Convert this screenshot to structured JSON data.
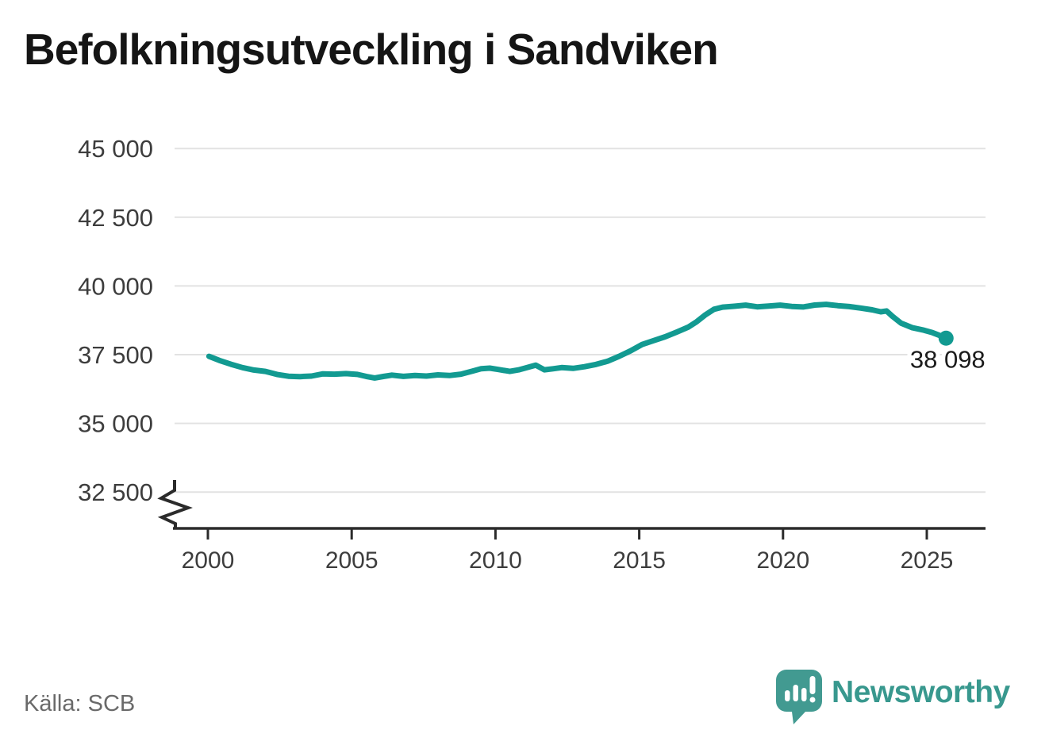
{
  "title": "Befolkningsutveckling i Sandviken",
  "source": "Källa: SCB",
  "branding": {
    "name": "Newsworthy"
  },
  "colors": {
    "line": "#129a91",
    "grid": "#e2e2e2",
    "axis": "#2b2b2b",
    "tick_label": "#3d3d3d",
    "end_label": "#1b1b1b",
    "brand_icon": "#429a91",
    "brand_text": "#38988e"
  },
  "chart_data": {
    "type": "line",
    "title": "Befolkningsutveckling i Sandviken",
    "xlabel": "",
    "ylabel": "",
    "legend": "none",
    "grid": "horizontal",
    "axis_break_bottom_left": true,
    "x_ticks": [
      2000,
      2005,
      2010,
      2015,
      2020,
      2025
    ],
    "y_ticks": [
      {
        "value": 32500,
        "label": "32 500"
      },
      {
        "value": 35000,
        "label": "35 000"
      },
      {
        "value": 37500,
        "label": "37 500"
      },
      {
        "value": 40000,
        "label": "40 000"
      },
      {
        "value": 42500,
        "label": "42 500"
      },
      {
        "value": 45000,
        "label": "45 000"
      }
    ],
    "xlim": [
      1998.8,
      2027.1
    ],
    "ylim_shown": [
      32500,
      45000
    ],
    "end_value": 38098,
    "end_label": "38 098",
    "series": [
      {
        "name": "Befolkning i Sandviken",
        "points": [
          [
            2000.04,
            37440
          ],
          [
            2000.4,
            37290
          ],
          [
            2000.8,
            37150
          ],
          [
            2001.2,
            37030
          ],
          [
            2001.6,
            36940
          ],
          [
            2002.0,
            36890
          ],
          [
            2002.4,
            36780
          ],
          [
            2002.8,
            36715
          ],
          [
            2003.2,
            36700
          ],
          [
            2003.6,
            36720
          ],
          [
            2004.0,
            36800
          ],
          [
            2004.4,
            36790
          ],
          [
            2004.8,
            36810
          ],
          [
            2005.2,
            36780
          ],
          [
            2005.5,
            36710
          ],
          [
            2005.8,
            36650
          ],
          [
            2006.1,
            36705
          ],
          [
            2006.4,
            36755
          ],
          [
            2006.8,
            36710
          ],
          [
            2007.2,
            36745
          ],
          [
            2007.6,
            36720
          ],
          [
            2008.0,
            36765
          ],
          [
            2008.4,
            36740
          ],
          [
            2008.8,
            36790
          ],
          [
            2009.2,
            36900
          ],
          [
            2009.5,
            36985
          ],
          [
            2009.8,
            37010
          ],
          [
            2010.1,
            36960
          ],
          [
            2010.5,
            36890
          ],
          [
            2010.8,
            36945
          ],
          [
            2011.1,
            37030
          ],
          [
            2011.4,
            37120
          ],
          [
            2011.7,
            36950
          ],
          [
            2012.0,
            36985
          ],
          [
            2012.3,
            37030
          ],
          [
            2012.7,
            37000
          ],
          [
            2013.1,
            37060
          ],
          [
            2013.5,
            37145
          ],
          [
            2013.9,
            37260
          ],
          [
            2014.3,
            37440
          ],
          [
            2014.7,
            37640
          ],
          [
            2015.1,
            37870
          ],
          [
            2015.5,
            38010
          ],
          [
            2015.9,
            38150
          ],
          [
            2016.3,
            38320
          ],
          [
            2016.7,
            38500
          ],
          [
            2017.0,
            38700
          ],
          [
            2017.3,
            38950
          ],
          [
            2017.6,
            39150
          ],
          [
            2017.9,
            39230
          ],
          [
            2018.3,
            39260
          ],
          [
            2018.7,
            39300
          ],
          [
            2019.1,
            39240
          ],
          [
            2019.5,
            39270
          ],
          [
            2019.9,
            39300
          ],
          [
            2020.3,
            39255
          ],
          [
            2020.7,
            39235
          ],
          [
            2021.1,
            39305
          ],
          [
            2021.5,
            39330
          ],
          [
            2021.9,
            39285
          ],
          [
            2022.3,
            39250
          ],
          [
            2022.7,
            39195
          ],
          [
            2023.1,
            39130
          ],
          [
            2023.4,
            39060
          ],
          [
            2023.6,
            39090
          ],
          [
            2023.8,
            38900
          ],
          [
            2024.1,
            38650
          ],
          [
            2024.5,
            38480
          ],
          [
            2024.9,
            38390
          ],
          [
            2025.2,
            38300
          ],
          [
            2025.45,
            38200
          ],
          [
            2025.67,
            38098
          ]
        ]
      }
    ]
  }
}
